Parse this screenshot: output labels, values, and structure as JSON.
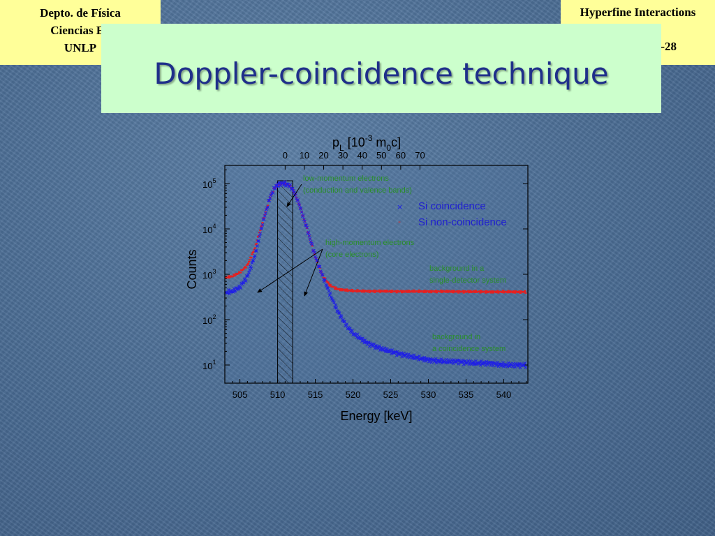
{
  "header": {
    "left_lines": [
      "Depto. de Física",
      "Ciencias Ex",
      "UNLP"
    ],
    "right_title": "Hyperfine Interactions",
    "page_fragment": "-28"
  },
  "slide": {
    "title": "Doppler-coincidence technique"
  },
  "chart_data": {
    "type": "scatter",
    "xlabel": "Energy [keV]",
    "ylabel": "Counts",
    "xlim": [
      503,
      543.2
    ],
    "ylim_log10": [
      0.6,
      5.4
    ],
    "yscale": "log",
    "x_ticks": [
      "505",
      "510",
      "515",
      "520",
      "525",
      "530",
      "535",
      "540"
    ],
    "y_ticks": [
      {
        "base": "10",
        "exp": "1"
      },
      {
        "base": "10",
        "exp": "2"
      },
      {
        "base": "10",
        "exp": "3"
      },
      {
        "base": "10",
        "exp": "4"
      },
      {
        "base": "10",
        "exp": "5"
      }
    ],
    "top_axis": {
      "label_parts": [
        "p",
        "L",
        " [10",
        "-3",
        " m",
        "0",
        "c]"
      ],
      "ticks": [
        "0",
        "10",
        "20",
        "30",
        "40",
        "50",
        "60",
        "70"
      ],
      "center_energy": 511,
      "kev_per_unit": 0.2555
    },
    "energy_window": [
      510,
      512
    ],
    "series": [
      {
        "name": "Si coincidence",
        "marker": "×",
        "color": "#1f1fe6",
        "x": [
          503.2,
          504,
          505,
          506,
          507,
          508,
          509,
          509.5,
          510,
          510.5,
          511,
          511.5,
          512,
          512.5,
          513,
          514,
          515,
          516,
          517,
          518,
          519,
          520,
          522,
          524,
          526,
          528,
          530,
          532,
          534,
          536,
          538,
          540,
          543
        ],
        "y": [
          400,
          420,
          520,
          900,
          2600,
          13000,
          50000,
          75000,
          95000,
          100000,
          100000,
          92000,
          75000,
          50000,
          30000,
          9000,
          2500,
          900,
          350,
          150,
          80,
          50,
          30,
          22,
          18,
          15,
          13,
          12,
          12,
          11,
          11,
          10,
          10
        ]
      },
      {
        "name": "Si non-coincidence",
        "marker": "-",
        "color": "#e62020",
        "x": [
          503.2,
          504,
          505,
          506,
          507,
          508,
          509,
          509.5,
          510,
          510.5,
          511,
          511.5,
          512,
          512.5,
          513,
          514,
          515,
          516,
          517,
          518,
          520,
          525,
          530,
          535,
          540,
          543
        ],
        "y": [
          850,
          900,
          1100,
          1600,
          3800,
          14000,
          50000,
          75000,
          95000,
          100000,
          100000,
          92000,
          75000,
          50000,
          30000,
          9000,
          2400,
          900,
          560,
          470,
          430,
          420,
          420,
          415,
          410,
          410
        ]
      }
    ],
    "annotations": {
      "low_momentum": [
        "low-momentum electrons",
        "(conduction and valence bands)"
      ],
      "high_momentum": [
        "high-momentum electrons",
        "(core electrons)"
      ],
      "background_single": [
        "background in a",
        "single-detector system"
      ],
      "background_coincidence": [
        "background in",
        "a coincidence system"
      ]
    },
    "legend": "upper right"
  }
}
